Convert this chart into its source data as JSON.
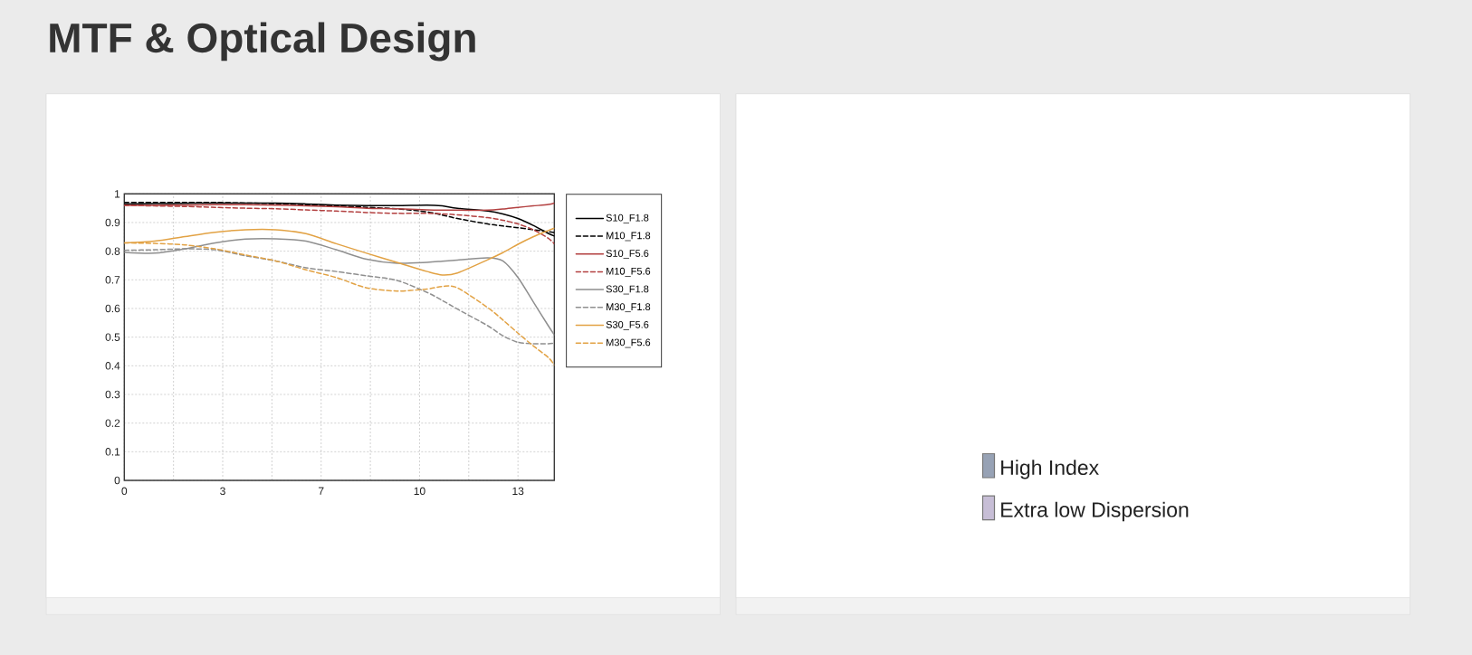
{
  "chart_data": [
    {
      "type": "line",
      "title": "MTF & Optical Design",
      "x": [
        0,
        1,
        2,
        3,
        4,
        5,
        6,
        7,
        8,
        9,
        10,
        10.5,
        11,
        12,
        12.5,
        13,
        13.5,
        14,
        14.2
      ],
      "series": [
        {
          "name": "S10_F1.8",
          "color": "#000000",
          "line_style": "solid",
          "values": [
            0.965,
            0.966,
            0.967,
            0.968,
            0.968,
            0.968,
            0.965,
            0.961,
            0.959,
            0.959,
            0.961,
            0.958,
            0.95,
            0.94,
            0.93,
            0.914,
            0.89,
            0.862,
            0.853
          ]
        },
        {
          "name": "M10_F1.8",
          "color": "#000000",
          "line_style": "dashed",
          "values": [
            0.97,
            0.97,
            0.97,
            0.97,
            0.968,
            0.966,
            0.962,
            0.958,
            0.953,
            0.948,
            0.937,
            0.926,
            0.914,
            0.895,
            0.888,
            0.882,
            0.875,
            0.868,
            0.865
          ]
        },
        {
          "name": "S10_F5.6",
          "color": "#b34040",
          "line_style": "solid",
          "values": [
            0.96,
            0.96,
            0.961,
            0.962,
            0.962,
            0.961,
            0.958,
            0.955,
            0.95,
            0.948,
            0.944,
            0.943,
            0.943,
            0.943,
            0.947,
            0.953,
            0.958,
            0.963,
            0.968
          ]
        },
        {
          "name": "M10_F5.6",
          "color": "#b34040",
          "line_style": "dashed",
          "values": [
            0.96,
            0.958,
            0.956,
            0.953,
            0.95,
            0.948,
            0.944,
            0.94,
            0.935,
            0.932,
            0.932,
            0.93,
            0.927,
            0.917,
            0.908,
            0.895,
            0.875,
            0.845,
            0.826
          ]
        },
        {
          "name": "S30_F1.8",
          "color": "#8f8f8f",
          "line_style": "solid",
          "values": [
            0.796,
            0.793,
            0.808,
            0.829,
            0.842,
            0.843,
            0.835,
            0.805,
            0.772,
            0.758,
            0.761,
            0.765,
            0.769,
            0.777,
            0.766,
            0.708,
            0.624,
            0.54,
            0.508
          ]
        },
        {
          "name": "M30_F1.8",
          "color": "#8f8f8f",
          "line_style": "dashed",
          "values": [
            0.803,
            0.805,
            0.808,
            0.805,
            0.784,
            0.766,
            0.742,
            0.729,
            0.714,
            0.698,
            0.656,
            0.628,
            0.598,
            0.54,
            0.505,
            0.482,
            0.477,
            0.477,
            0.479
          ]
        },
        {
          "name": "S30_F5.6",
          "color": "#e2a244",
          "line_style": "solid",
          "values": [
            0.829,
            0.835,
            0.851,
            0.866,
            0.875,
            0.875,
            0.861,
            0.826,
            0.793,
            0.761,
            0.729,
            0.717,
            0.724,
            0.77,
            0.795,
            0.824,
            0.85,
            0.872,
            0.88
          ]
        },
        {
          "name": "M30_F5.6",
          "color": "#e2a244",
          "line_style": "dashed",
          "values": [
            0.829,
            0.827,
            0.822,
            0.808,
            0.787,
            0.766,
            0.735,
            0.708,
            0.672,
            0.661,
            0.668,
            0.677,
            0.672,
            0.603,
            0.56,
            0.514,
            0.47,
            0.429,
            0.403
          ]
        }
      ],
      "xlim": [
        0,
        14.2
      ],
      "ylim": [
        0,
        1
      ],
      "xticks": [
        0,
        {
          "value": 1.625,
          "label": null
        },
        {
          "value": 3.25,
          "label": "3"
        },
        {
          "value": 4.875,
          "label": null
        },
        {
          "value": 6.5,
          "label": "7"
        },
        {
          "value": 8.125,
          "label": null
        },
        {
          "value": 9.75,
          "label": "10"
        },
        {
          "value": 11.375,
          "label": null
        },
        13
      ],
      "yticks": [
        0,
        0.1,
        0.2,
        0.3,
        0.4,
        0.5,
        0.6,
        0.7,
        0.8,
        0.9,
        1
      ],
      "grid": true,
      "legend": "right"
    },
    {
      "type": "other",
      "categories": [
        "High Index",
        "Extra low Dispersion"
      ],
      "colors": [
        "#97a2b5",
        "#c7bed6"
      ]
    }
  ]
}
